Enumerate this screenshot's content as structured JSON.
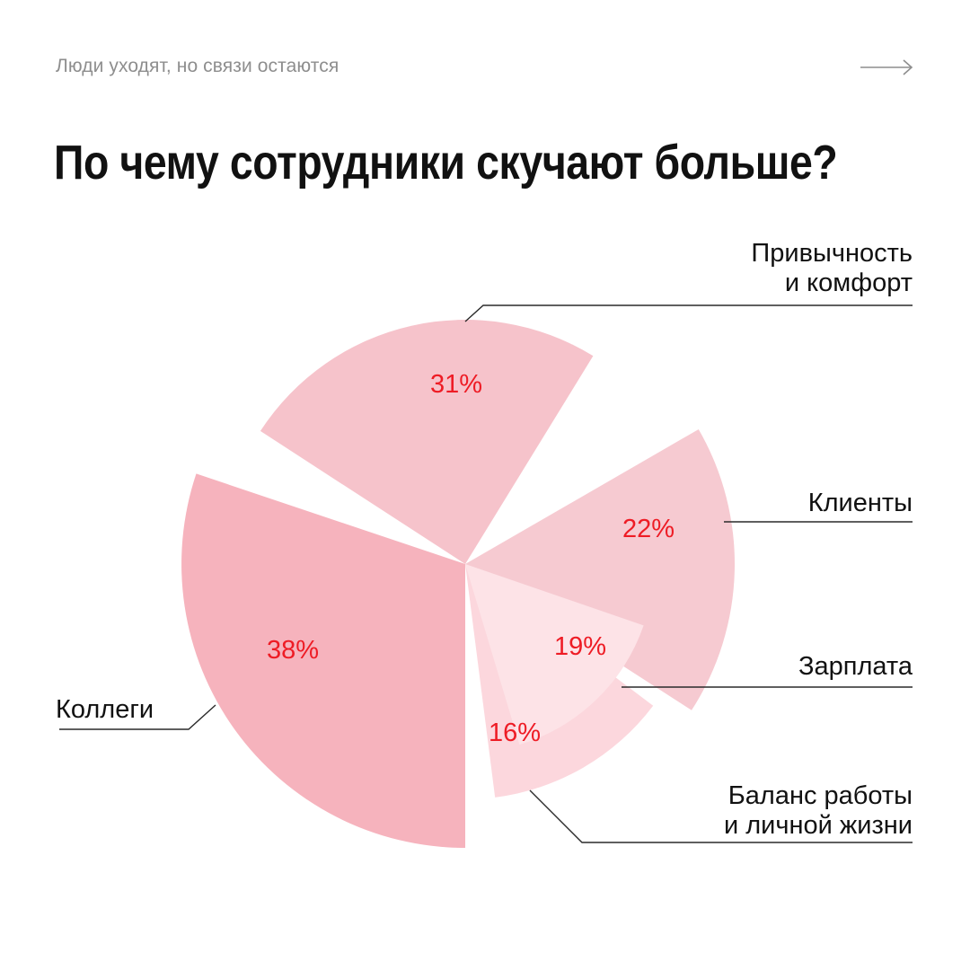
{
  "header": {
    "subtitle": "Люди уходят, но связи остаются",
    "next_icon": "long-arrow-right-icon",
    "title": "По чему сотрудники скучают больше?"
  },
  "colors": {
    "label_color": "#ee1c25",
    "text": "#111111",
    "muted": "#8e8e8e",
    "line": "#2a2a2a"
  },
  "chart_data": {
    "type": "pie",
    "title": "По чему сотрудники скучают больше?",
    "slices": [
      {
        "label": "Коллеги",
        "value": 38,
        "value_label": "38%",
        "color": "#f6b3bd"
      },
      {
        "label": "Привычность и комфорт",
        "label_lines": [
          "Привычность",
          "и комфорт"
        ],
        "value": 31,
        "value_label": "31%",
        "color": "#f6c3cb"
      },
      {
        "label": "Клиенты",
        "value": 22,
        "value_label": "22%",
        "color": "#f6cad1"
      },
      {
        "label": "Зарплата",
        "value": 19,
        "value_label": "19%",
        "color": "#fde3e7"
      },
      {
        "label": "Баланс работы и личной жизни",
        "label_lines": [
          "Баланс работы",
          "и личной жизни"
        ],
        "value": 16,
        "value_label": "16%",
        "color": "#fcd7dd"
      }
    ]
  }
}
